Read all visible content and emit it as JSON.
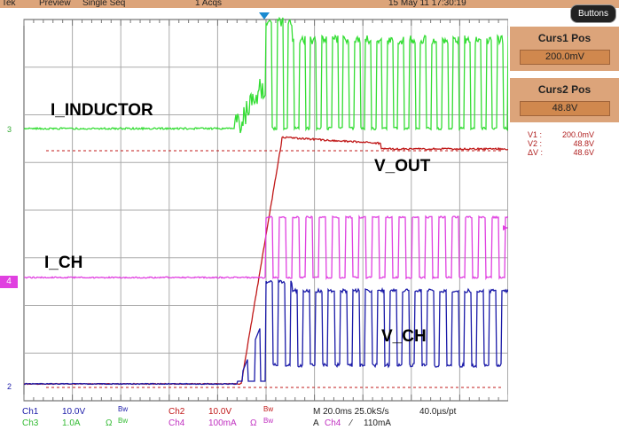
{
  "header": {
    "brand": "Tek",
    "mode": "Preview",
    "acq_mode": "Single Seq",
    "acqs": "1 Acqs",
    "datetime": "15 May 11 17:30:19",
    "buttons_label": "Buttons"
  },
  "cursors": {
    "curs1_title": "Curs1 Pos",
    "curs1_value": "200.0mV",
    "curs2_title": "Curs2 Pos",
    "curs2_value": "48.8V",
    "readout": [
      {
        "k": "V1 :",
        "v": "200.0mV"
      },
      {
        "k": "V2 :",
        "v": "48.8V"
      },
      {
        "k": "ΔV :",
        "v": "48.6V"
      }
    ]
  },
  "traces": {
    "i_inductor": "I_INDUCTOR",
    "v_out": "V_OUT",
    "i_ch": "I_CH",
    "v_ch": "V_CH",
    "marker3": "3",
    "marker4": "4",
    "marker2": "2"
  },
  "colors": {
    "ch1": "#1a1aa8",
    "ch2": "#c01818",
    "ch3": "#33dd33",
    "ch4": "#e040e0",
    "panel": "#dca47a"
  },
  "footer": {
    "ch1": "Ch1",
    "ch1_scale": "10.0V",
    "ch1_bw": "Bw",
    "ch2": "Ch2",
    "ch2_scale": "10.0V",
    "ch2_bw": "Bw",
    "ch3": "Ch3",
    "ch3_scale": "1.0A",
    "ch3_ohm": "Ω",
    "ch3_bw": "Bw",
    "ch4": "Ch4",
    "ch4_scale": "100mA",
    "ch4_ohm": "Ω",
    "ch4_bw": "Bw",
    "timebase": "M 20.0ms 25.0kS/s",
    "sample": "40.0µs/pt",
    "trigger_prefix": "A",
    "trigger_ch": "Ch4",
    "trigger_slope": "⁄",
    "trigger_level": "110mA"
  }
}
